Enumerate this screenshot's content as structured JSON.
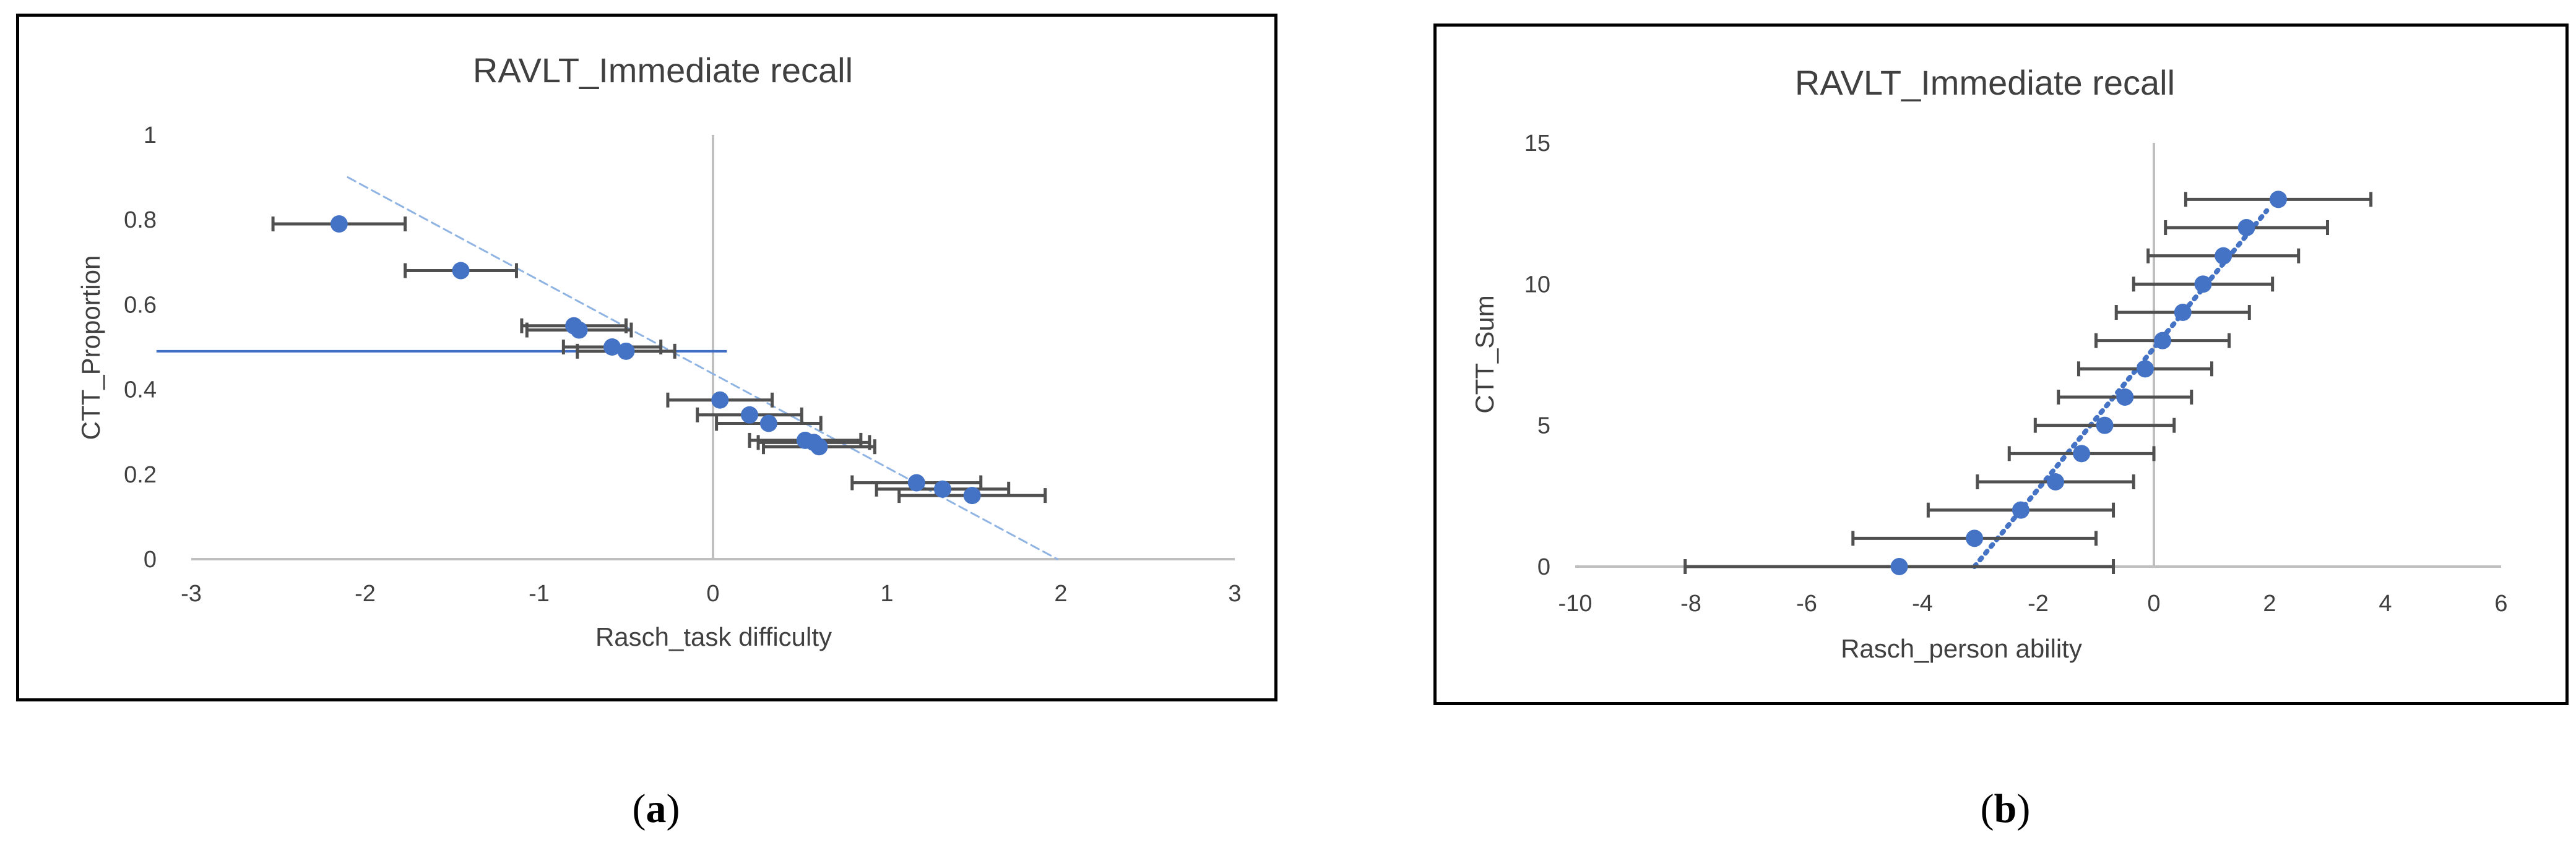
{
  "panels": [
    {
      "caption_letter": "a",
      "chart_data": {
        "type": "scatter",
        "title": "RAVLT_Immediate recall",
        "xlabel": "Rasch_task difficulty",
        "ylabel": "CTT_Proportion",
        "xlim": [
          -3,
          3
        ],
        "ylim": [
          0,
          1
        ],
        "xticks": [
          -3,
          -2,
          -1,
          0,
          1,
          2,
          3
        ],
        "yticks": [
          0,
          0.2,
          0.4,
          0.6,
          0.8,
          1
        ],
        "ytick_labels": [
          "0",
          "0.2",
          "0.4",
          "0.6",
          "0.8",
          "1"
        ],
        "grid": false,
        "points": [
          {
            "x": -2.15,
            "y": 0.79,
            "xerr": 0.38
          },
          {
            "x": -1.45,
            "y": 0.68,
            "xerr": 0.32
          },
          {
            "x": -0.8,
            "y": 0.55,
            "xerr": 0.3
          },
          {
            "x": -0.77,
            "y": 0.54,
            "xerr": 0.3
          },
          {
            "x": -0.58,
            "y": 0.5,
            "xerr": 0.28
          },
          {
            "x": -0.5,
            "y": 0.49,
            "xerr": 0.28
          },
          {
            "x": 0.04,
            "y": 0.375,
            "xerr": 0.3
          },
          {
            "x": 0.21,
            "y": 0.34,
            "xerr": 0.3
          },
          {
            "x": 0.32,
            "y": 0.32,
            "xerr": 0.3
          },
          {
            "x": 0.53,
            "y": 0.28,
            "xerr": 0.32
          },
          {
            "x": 0.58,
            "y": 0.275,
            "xerr": 0.32
          },
          {
            "x": 0.61,
            "y": 0.265,
            "xerr": 0.32
          },
          {
            "x": 1.17,
            "y": 0.18,
            "xerr": 0.37
          },
          {
            "x": 1.32,
            "y": 0.165,
            "xerr": 0.38
          },
          {
            "x": 1.49,
            "y": 0.15,
            "xerr": 0.42
          }
        ],
        "trendline": {
          "style": "dashed",
          "color": "#8fb4e3",
          "from": [
            -2.1,
            0.9
          ],
          "to": [
            1.98,
            0
          ]
        },
        "reference_line": {
          "type": "horizontal",
          "y": 0.49,
          "x_from": -3.2,
          "x_to": 0.08,
          "color": "#3f6fc4"
        },
        "marker_color": "#4472c4",
        "errorbar_color": "#505050"
      }
    },
    {
      "caption_letter": "b",
      "chart_data": {
        "type": "scatter",
        "title": "RAVLT_Immediate recall",
        "xlabel": "Rasch_person ability",
        "ylabel": "CTT_Sum",
        "xlim": [
          -10,
          6
        ],
        "ylim": [
          0,
          15
        ],
        "xticks": [
          -10,
          -8,
          -6,
          -4,
          -2,
          0,
          2,
          4,
          6
        ],
        "yticks": [
          0,
          5,
          10,
          15
        ],
        "ytick_labels": [
          "0",
          "5",
          "10",
          "15"
        ],
        "grid": false,
        "points": [
          {
            "x": -4.4,
            "y": 0,
            "xerr": 3.7
          },
          {
            "x": -3.1,
            "y": 1,
            "xerr": 2.1
          },
          {
            "x": -2.3,
            "y": 2,
            "xerr": 1.6
          },
          {
            "x": -1.7,
            "y": 3,
            "xerr": 1.35
          },
          {
            "x": -1.25,
            "y": 4,
            "xerr": 1.25
          },
          {
            "x": -0.85,
            "y": 5,
            "xerr": 1.2
          },
          {
            "x": -0.5,
            "y": 6,
            "xerr": 1.15
          },
          {
            "x": -0.15,
            "y": 7,
            "xerr": 1.15
          },
          {
            "x": 0.15,
            "y": 8,
            "xerr": 1.15
          },
          {
            "x": 0.5,
            "y": 9,
            "xerr": 1.15
          },
          {
            "x": 0.85,
            "y": 10,
            "xerr": 1.2
          },
          {
            "x": 1.2,
            "y": 11,
            "xerr": 1.3
          },
          {
            "x": 1.6,
            "y": 12,
            "xerr": 1.4
          },
          {
            "x": 2.15,
            "y": 13,
            "xerr": 1.6
          }
        ],
        "trendline": {
          "style": "dotted",
          "color": "#4472c4",
          "from": [
            -3.1,
            0
          ],
          "to": [
            1.95,
            12.6
          ]
        },
        "marker_color": "#4472c4",
        "errorbar_color": "#505050"
      }
    }
  ]
}
